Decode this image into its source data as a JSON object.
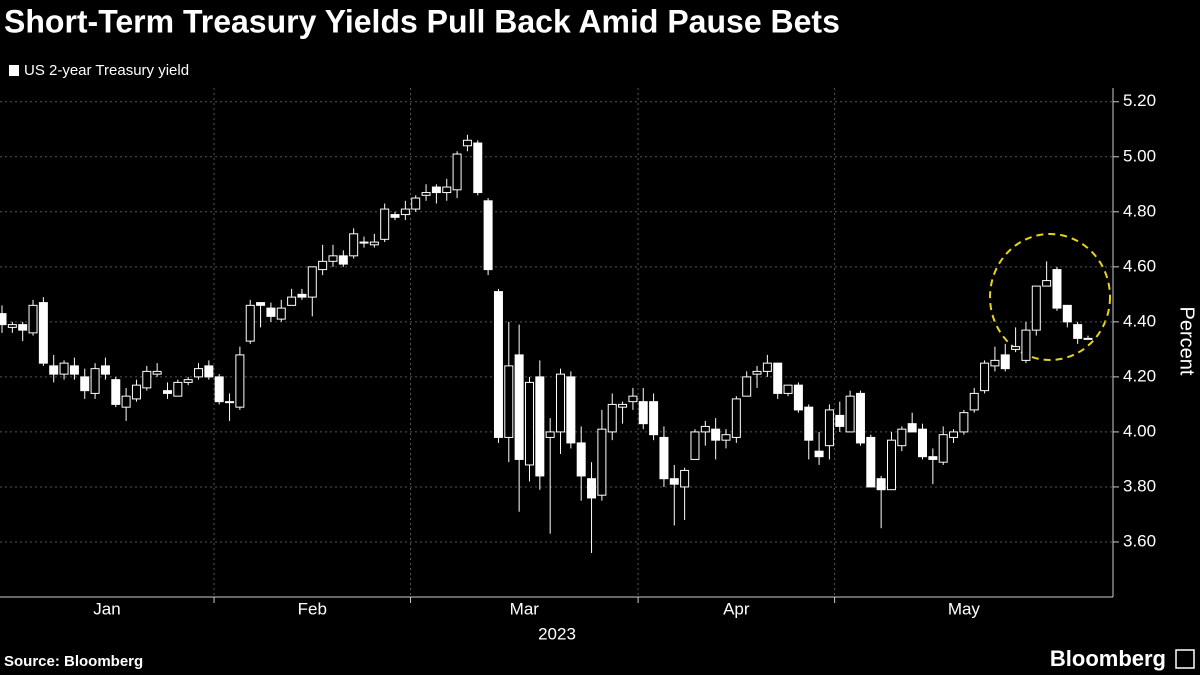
{
  "chart_data": {
    "type": "candlestick",
    "title": "Short-Term Treasury Yields Pull Back Amid Pause Bets",
    "ylabel": "Percent",
    "xlabel": "2023",
    "source": "Source: Bloomberg",
    "brand": "Bloomberg",
    "categories": [
      "Jan",
      "Jan",
      "Jan",
      "Jan",
      "Jan",
      "Jan",
      "Jan",
      "Jan",
      "Jan",
      "Jan",
      "Jan",
      "Jan",
      "Jan",
      "Jan",
      "Jan",
      "Jan",
      "Jan",
      "Jan",
      "Jan",
      "Jan",
      "Jan",
      "Feb",
      "Feb",
      "Feb",
      "Feb",
      "Feb",
      "Feb",
      "Feb",
      "Feb",
      "Feb",
      "Feb",
      "Feb",
      "Feb",
      "Feb",
      "Feb",
      "Feb",
      "Feb",
      "Feb",
      "Feb",
      "Feb",
      "Mar",
      "Mar",
      "Mar",
      "Mar",
      "Mar",
      "Mar",
      "Mar",
      "Mar",
      "Mar",
      "Mar",
      "Mar",
      "Mar",
      "Mar",
      "Mar",
      "Mar",
      "Mar",
      "Mar",
      "Mar",
      "Mar",
      "Mar",
      "Mar",
      "Mar",
      "Apr",
      "Apr",
      "Apr",
      "Apr",
      "Apr",
      "Apr",
      "Apr",
      "Apr",
      "Apr",
      "Apr",
      "Apr",
      "Apr",
      "Apr",
      "Apr",
      "Apr",
      "Apr",
      "Apr",
      "Apr",
      "Apr",
      "May",
      "May",
      "May",
      "May",
      "May",
      "May",
      "May",
      "May",
      "May",
      "May",
      "May",
      "May",
      "May",
      "May",
      "May",
      "May",
      "May",
      "May",
      "May",
      "May",
      "May",
      "May",
      "May",
      "May",
      "May"
    ],
    "series": [
      {
        "name": "US 2-year Treasury yield",
        "color": "#ffffff",
        "open": [
          4.43,
          4.38,
          4.39,
          4.36,
          4.47,
          4.24,
          4.21,
          4.24,
          4.2,
          4.14,
          4.24,
          4.19,
          4.09,
          4.12,
          4.16,
          4.21,
          4.15,
          4.13,
          4.18,
          4.2,
          4.24,
          4.2,
          4.11,
          4.09,
          4.33,
          4.47,
          4.45,
          4.41,
          4.46,
          4.5,
          4.49,
          4.59,
          4.62,
          4.64,
          4.64,
          4.69,
          4.68,
          4.7,
          4.79,
          4.79,
          4.81,
          4.86,
          4.89,
          4.87,
          4.88,
          5.04,
          5.05,
          4.84,
          4.51,
          3.98,
          4.28,
          3.88,
          4.2,
          3.98,
          4.0,
          4.2,
          3.96,
          3.83,
          3.77,
          4.0,
          4.09,
          4.11,
          4.11,
          4.11,
          3.98,
          3.83,
          3.8,
          3.9,
          4.0,
          4.01,
          3.97,
          3.98,
          4.13,
          4.21,
          4.22,
          4.25,
          4.14,
          4.17,
          4.09,
          3.93,
          3.95,
          4.06,
          4.0,
          4.14,
          3.98,
          3.83,
          3.79,
          3.95,
          4.03,
          4.01,
          3.91,
          3.89,
          3.98,
          4.0,
          4.08,
          4.15,
          4.24,
          4.28,
          4.3,
          4.26,
          4.37,
          4.53,
          4.59,
          4.46,
          4.39,
          4.34
        ],
        "high": [
          4.46,
          4.4,
          4.4,
          4.48,
          4.49,
          4.28,
          4.26,
          4.27,
          4.23,
          4.25,
          4.27,
          4.2,
          4.16,
          4.19,
          4.24,
          4.25,
          4.18,
          4.19,
          4.2,
          4.25,
          4.26,
          4.21,
          4.14,
          4.31,
          4.48,
          4.47,
          4.47,
          4.48,
          4.52,
          4.52,
          4.6,
          4.68,
          4.68,
          4.66,
          4.74,
          4.71,
          4.72,
          4.83,
          4.8,
          4.84,
          4.86,
          4.9,
          4.9,
          4.92,
          5.02,
          5.08,
          5.06,
          4.85,
          4.52,
          4.4,
          4.39,
          4.2,
          4.26,
          4.05,
          4.23,
          4.22,
          4.02,
          3.89,
          4.08,
          4.14,
          4.11,
          4.16,
          4.16,
          4.14,
          4.02,
          3.88,
          3.87,
          4.01,
          4.04,
          4.05,
          4.01,
          4.13,
          4.22,
          4.24,
          4.28,
          4.25,
          4.17,
          4.18,
          4.1,
          4.0,
          4.1,
          4.11,
          4.15,
          4.15,
          3.99,
          3.84,
          4.0,
          4.02,
          4.07,
          4.03,
          3.94,
          4.02,
          4.01,
          4.08,
          4.16,
          4.26,
          4.31,
          4.32,
          4.38,
          4.4,
          4.53,
          4.62,
          4.6,
          4.46,
          4.4,
          4.35
        ],
        "low": [
          4.36,
          4.36,
          4.33,
          4.35,
          4.24,
          4.18,
          4.19,
          4.19,
          4.12,
          4.12,
          4.19,
          4.09,
          4.04,
          4.11,
          4.15,
          4.2,
          4.12,
          4.13,
          4.17,
          4.19,
          4.19,
          4.1,
          4.04,
          4.08,
          4.32,
          4.38,
          4.4,
          4.4,
          4.46,
          4.48,
          4.42,
          4.57,
          4.6,
          4.6,
          4.63,
          4.67,
          4.67,
          4.69,
          4.77,
          4.77,
          4.8,
          4.84,
          4.83,
          4.84,
          4.85,
          5.02,
          4.86,
          4.57,
          3.96,
          3.89,
          3.71,
          3.82,
          3.79,
          3.63,
          3.92,
          3.94,
          3.75,
          3.56,
          3.75,
          3.97,
          4.03,
          4.08,
          4.01,
          3.97,
          3.8,
          3.66,
          3.68,
          3.9,
          3.95,
          3.9,
          3.94,
          3.96,
          4.13,
          4.16,
          4.2,
          4.12,
          4.13,
          4.07,
          3.9,
          3.88,
          3.9,
          4.0,
          4.0,
          3.95,
          3.8,
          3.65,
          3.79,
          3.93,
          4.0,
          3.9,
          3.81,
          3.88,
          3.96,
          3.99,
          4.07,
          4.14,
          4.22,
          4.22,
          4.29,
          4.25,
          4.35,
          4.53,
          4.44,
          4.38,
          4.32,
          4.34
        ],
        "close": [
          4.39,
          4.39,
          4.37,
          4.46,
          4.25,
          4.21,
          4.25,
          4.21,
          4.15,
          4.23,
          4.21,
          4.1,
          4.13,
          4.17,
          4.22,
          4.22,
          4.14,
          4.18,
          4.19,
          4.23,
          4.2,
          4.11,
          4.11,
          4.28,
          4.46,
          4.46,
          4.42,
          4.45,
          4.49,
          4.49,
          4.6,
          4.62,
          4.64,
          4.61,
          4.72,
          4.69,
          4.69,
          4.81,
          4.78,
          4.81,
          4.85,
          4.87,
          4.87,
          4.89,
          5.01,
          5.06,
          4.87,
          4.59,
          3.98,
          4.24,
          3.9,
          4.18,
          3.84,
          4.0,
          4.21,
          3.96,
          3.84,
          3.76,
          4.01,
          4.1,
          4.1,
          4.13,
          4.03,
          3.99,
          3.83,
          3.81,
          3.86,
          4.0,
          4.02,
          3.97,
          3.99,
          4.12,
          4.2,
          4.22,
          4.25,
          4.14,
          4.17,
          4.08,
          3.97,
          3.91,
          4.08,
          4.02,
          4.13,
          3.96,
          3.8,
          3.79,
          3.97,
          4.01,
          4.0,
          3.91,
          3.9,
          3.99,
          4.0,
          4.07,
          4.14,
          4.25,
          4.26,
          4.23,
          4.31,
          4.37,
          4.53,
          4.55,
          4.45,
          4.4,
          4.34,
          4.34
        ]
      }
    ],
    "ylim": [
      3.4,
      5.25
    ],
    "yticks": [
      {
        "value": 3.6,
        "label": "3.60"
      },
      {
        "value": 3.8,
        "label": "3.80"
      },
      {
        "value": 4,
        "label": "4.00"
      },
      {
        "value": 4.2,
        "label": "4.20"
      },
      {
        "value": 4.4,
        "label": "4.40"
      },
      {
        "value": 4.6,
        "label": "4.60"
      },
      {
        "value": 4.8,
        "label": "4.80"
      },
      {
        "value": 5,
        "label": "5.00"
      },
      {
        "value": 5.2,
        "label": "5.20"
      }
    ],
    "grid": true
  }
}
